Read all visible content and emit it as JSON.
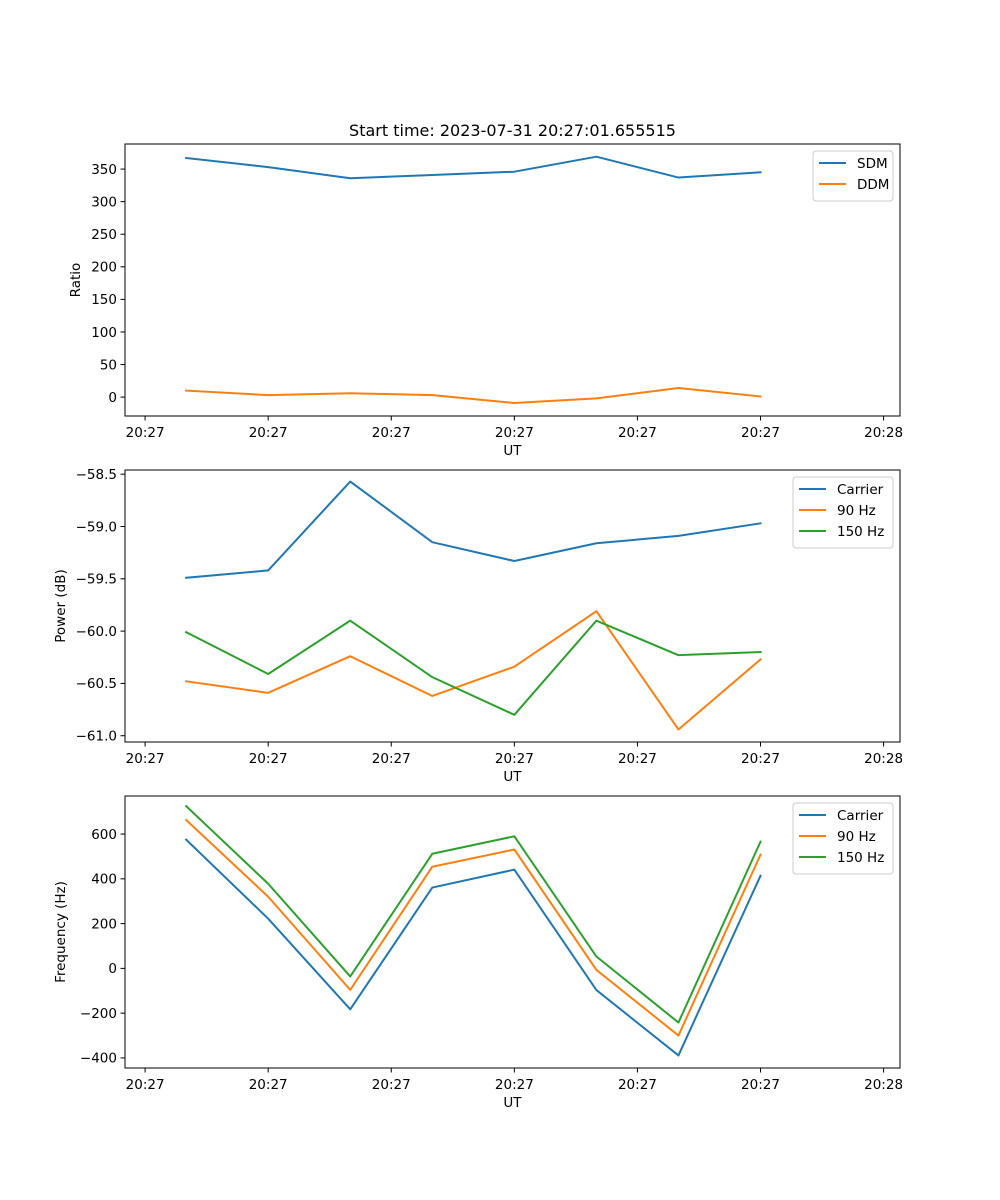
{
  "figure": {
    "title": "Start time: 2023-07-31 20:27:01.655515"
  },
  "chart_data": [
    {
      "type": "line",
      "title": "Start time: 2023-07-31 20:27:01.655515",
      "xlabel": "UT",
      "ylabel": "Ratio",
      "x": [
        1,
        2,
        3,
        4,
        5,
        6,
        7,
        8
      ],
      "xlim": [
        0.255,
        9.7
      ],
      "xticks": [
        0.5,
        2,
        3.5,
        5,
        6.5,
        8,
        9.5
      ],
      "xtick_labels": [
        "20:27",
        "20:27",
        "20:27",
        "20:27",
        "20:27",
        "20:27",
        "20:28"
      ],
      "ylim": [
        -29,
        388.5
      ],
      "yticks": [
        0,
        50,
        100,
        150,
        200,
        250,
        300,
        350
      ],
      "ytick_labels": [
        "0",
        "50",
        "100",
        "150",
        "200",
        "250",
        "300",
        "350"
      ],
      "legend_position": "upper-right",
      "series": [
        {
          "name": "SDM",
          "color": "#1f77b4",
          "values": [
            367,
            353,
            336,
            341,
            346,
            369,
            337,
            345
          ]
        },
        {
          "name": "DDM",
          "color": "#ff7f0e",
          "values": [
            10,
            3,
            6,
            3,
            -9,
            -2,
            14,
            1
          ]
        }
      ]
    },
    {
      "type": "line",
      "title": "",
      "xlabel": "UT",
      "ylabel": "Power (dB)",
      "x": [
        1,
        2,
        3,
        4,
        5,
        6,
        7,
        8
      ],
      "xlim": [
        0.255,
        9.7
      ],
      "xticks": [
        0.5,
        2,
        3.5,
        5,
        6.5,
        8,
        9.5
      ],
      "xtick_labels": [
        "20:27",
        "20:27",
        "20:27",
        "20:27",
        "20:27",
        "20:27",
        "20:28"
      ],
      "ylim": [
        -61.06,
        -58.46
      ],
      "yticks": [
        -61.0,
        -60.5,
        -60.0,
        -59.5,
        -59.0,
        -58.5
      ],
      "ytick_labels": [
        "−61.0",
        "−60.5",
        "−60.0",
        "−59.5",
        "−59.0",
        "−58.5"
      ],
      "legend_position": "upper-right",
      "series": [
        {
          "name": "Carrier",
          "color": "#1f77b4",
          "values": [
            -59.49,
            -59.42,
            -58.57,
            -59.15,
            -59.33,
            -59.16,
            -59.09,
            -58.97
          ]
        },
        {
          "name": "90 Hz",
          "color": "#ff7f0e",
          "values": [
            -60.48,
            -60.59,
            -60.24,
            -60.62,
            -60.34,
            -59.81,
            -60.94,
            -60.27
          ]
        },
        {
          "name": "150 Hz",
          "color": "#2ca02c",
          "values": [
            -60.01,
            -60.41,
            -59.9,
            -60.44,
            -60.8,
            -59.9,
            -60.23,
            -60.2
          ]
        }
      ]
    },
    {
      "type": "line",
      "title": "",
      "xlabel": "UT",
      "ylabel": "Frequency (Hz)",
      "x": [
        1,
        2,
        3,
        4,
        5,
        6,
        7,
        8
      ],
      "xlim": [
        0.255,
        9.7
      ],
      "xticks": [
        0.5,
        2,
        3.5,
        5,
        6.5,
        8,
        9.5
      ],
      "xtick_labels": [
        "20:27",
        "20:27",
        "20:27",
        "20:27",
        "20:27",
        "20:27",
        "20:28"
      ],
      "ylim": [
        -445,
        770
      ],
      "yticks": [
        -400,
        -200,
        0,
        200,
        400,
        600
      ],
      "ytick_labels": [
        "−400",
        "−200",
        "0",
        "200",
        "400",
        "600"
      ],
      "legend_position": "upper-right",
      "series": [
        {
          "name": "Carrier",
          "color": "#1f77b4",
          "values": [
            575,
            222,
            -183,
            361,
            441,
            -97,
            -389,
            414
          ]
        },
        {
          "name": "90 Hz",
          "color": "#ff7f0e",
          "values": [
            663,
            320,
            -96,
            454,
            531,
            -7,
            -300,
            508
          ]
        },
        {
          "name": "150 Hz",
          "color": "#2ca02c",
          "values": [
            725,
            378,
            -36,
            512,
            590,
            53,
            -242,
            566
          ]
        }
      ]
    }
  ]
}
